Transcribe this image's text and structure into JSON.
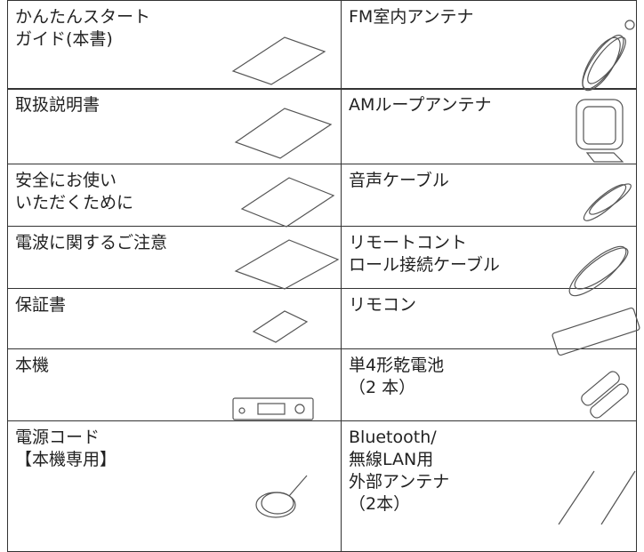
{
  "table": {
    "rows": [
      [
        [
          "かんたんスタート",
          "ガイド(本書)"
        ],
        [
          "FM室内アンテナ"
        ]
      ],
      [
        [
          "取扱説明書"
        ],
        [
          "AMループアンテナ"
        ]
      ],
      [
        [
          "安全にお使い",
          "いただくために"
        ],
        [
          "音声ケーブル"
        ]
      ],
      [
        [
          "電波に関するご注意"
        ],
        [
          "リモートコント",
          "ロール接続ケーブル"
        ]
      ],
      [
        [
          "保証書"
        ],
        [
          "リモコン"
        ]
      ],
      [
        [
          "本機"
        ],
        [
          "単4形乾電池",
          "（2 本）"
        ]
      ],
      [
        [
          "電源コード",
          "【本機専用】"
        ],
        [
          "Bluetooth/",
          "無線LAN用",
          "外部アンテナ",
          "（2本）"
        ]
      ]
    ]
  }
}
